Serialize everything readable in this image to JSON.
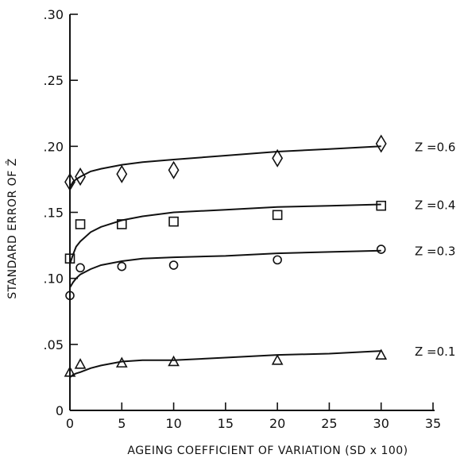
{
  "chart_data": {
    "type": "scatter",
    "xlabel": "AGEING COEFFICIENT OF VARIATION (SD x 100)",
    "ylabel": "STANDARD ERROR OF Ẑ",
    "xlim": [
      0,
      35
    ],
    "ylim": [
      0,
      0.3
    ],
    "x_ticks": [
      0,
      5,
      10,
      15,
      20,
      25,
      30,
      35
    ],
    "x_tick_labels": [
      "0",
      "5",
      "10",
      "15",
      "20",
      "25",
      "30",
      "35"
    ],
    "y_ticks": [
      0,
      0.05,
      0.1,
      0.15,
      0.2,
      0.25,
      0.3
    ],
    "y_tick_labels": [
      "0",
      ".05",
      ".10",
      ".15",
      ".20",
      ".25",
      ".30"
    ],
    "grid": false,
    "series": [
      {
        "name": "Z =0.6",
        "marker": "diamond",
        "x": [
          0,
          1,
          5,
          10,
          20,
          30
        ],
        "y": [
          0.173,
          0.177,
          0.179,
          0.182,
          0.191,
          0.202
        ],
        "fit_x": [
          0,
          0.3,
          0.6,
          1,
          2,
          3,
          5,
          7,
          10,
          15,
          20,
          25,
          30
        ],
        "fit_y": [
          0.169,
          0.173,
          0.175,
          0.177,
          0.181,
          0.183,
          0.186,
          0.188,
          0.19,
          0.193,
          0.196,
          0.198,
          0.2
        ]
      },
      {
        "name": "Z =0.4",
        "marker": "square",
        "x": [
          0,
          1,
          5,
          10,
          20,
          30
        ],
        "y": [
          0.115,
          0.141,
          0.141,
          0.143,
          0.148,
          0.155
        ],
        "fit_x": [
          0,
          0.3,
          0.6,
          1,
          2,
          3,
          5,
          7,
          10,
          15,
          20,
          25,
          30
        ],
        "fit_y": [
          0.111,
          0.118,
          0.124,
          0.128,
          0.135,
          0.139,
          0.144,
          0.147,
          0.15,
          0.152,
          0.154,
          0.155,
          0.156
        ]
      },
      {
        "name": "Z =0.3",
        "marker": "circle",
        "x": [
          0,
          1,
          5,
          10,
          20,
          30
        ],
        "y": [
          0.087,
          0.108,
          0.109,
          0.11,
          0.114,
          0.122
        ],
        "fit_x": [
          0,
          0.3,
          0.6,
          1,
          2,
          3,
          5,
          7,
          10,
          15,
          20,
          25,
          30
        ],
        "fit_y": [
          0.093,
          0.097,
          0.1,
          0.103,
          0.107,
          0.11,
          0.113,
          0.115,
          0.116,
          0.117,
          0.119,
          0.12,
          0.121
        ]
      },
      {
        "name": "Z =0.1",
        "marker": "triangle",
        "x": [
          0,
          1,
          5,
          10,
          20,
          30
        ],
        "y": [
          0.029,
          0.035,
          0.036,
          0.037,
          0.038,
          0.042
        ],
        "fit_x": [
          0,
          0.3,
          0.6,
          1,
          2,
          3,
          5,
          7,
          10,
          15,
          20,
          25,
          30
        ],
        "fit_y": [
          0.025,
          0.027,
          0.028,
          0.029,
          0.032,
          0.034,
          0.037,
          0.038,
          0.038,
          0.04,
          0.042,
          0.043,
          0.045
        ]
      }
    ]
  }
}
